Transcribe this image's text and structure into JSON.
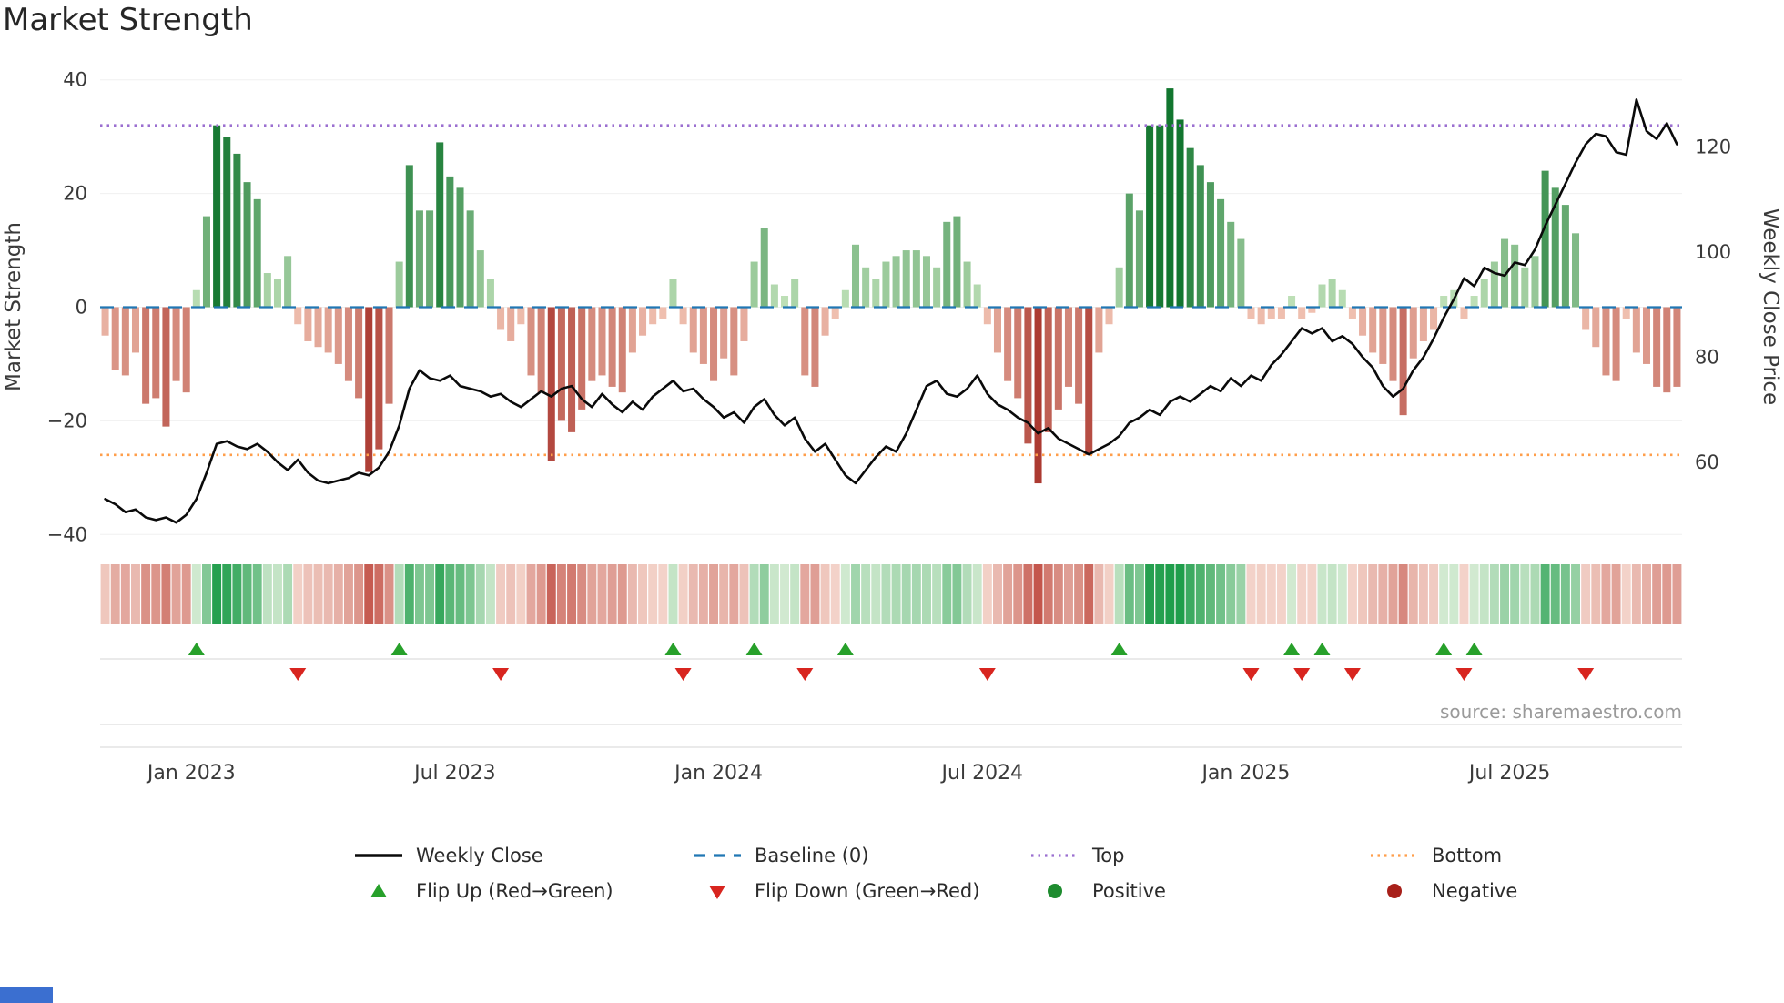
{
  "title": "Market Strength",
  "source": "source: sharemaestro.com",
  "axes": {
    "left_label": "Market Strength",
    "right_label": "Weekly Close Price",
    "left_ticks": [
      {
        "value": -40,
        "label": "−40"
      },
      {
        "value": -20,
        "label": "−20"
      },
      {
        "value": 0,
        "label": "0"
      },
      {
        "value": 20,
        "label": "20"
      },
      {
        "value": 40,
        "label": "40"
      }
    ],
    "right_ticks": [
      {
        "value": 60,
        "label": "60"
      },
      {
        "value": 80,
        "label": "80"
      },
      {
        "value": 100,
        "label": "100"
      },
      {
        "value": 120,
        "label": "120"
      }
    ],
    "x_ticks": [
      {
        "week": 8,
        "label": "Jan 2023"
      },
      {
        "week": 34,
        "label": "Jul 2023"
      },
      {
        "week": 60,
        "label": "Jan 2024"
      },
      {
        "week": 86,
        "label": "Jul 2024"
      },
      {
        "week": 112,
        "label": "Jan 2025"
      },
      {
        "week": 138,
        "label": "Jul 2025"
      }
    ]
  },
  "chart_data": {
    "type": "bar+line",
    "title": "Market Strength",
    "x_unit": "weekly",
    "n_weeks": 156,
    "left_ylim": [
      -43,
      43
    ],
    "right_ylim": [
      43,
      136
    ],
    "baseline": 0,
    "top_line": 32,
    "bottom_line": -26,
    "legend_position": "bottom",
    "grid": "faint horizontal",
    "series": [
      {
        "name": "Market Strength",
        "type": "bar",
        "axis": "left",
        "values": [
          -5,
          -11,
          -12,
          -8,
          -17,
          -16,
          -21,
          -13,
          -15,
          3,
          16,
          32,
          30,
          27,
          22,
          19,
          6,
          5,
          9,
          -3,
          -6,
          -7,
          -8,
          -10,
          -13,
          -16,
          -29,
          -25,
          -17,
          8,
          25,
          17,
          17,
          29,
          23,
          21,
          17,
          10,
          5,
          -4,
          -6,
          -3,
          -12,
          -15,
          -27,
          -20,
          -22,
          -18,
          -13,
          -12,
          -14,
          -15,
          -8,
          -5,
          -3,
          -2,
          5,
          -3,
          -8,
          -10,
          -13,
          -9,
          -12,
          -6,
          8,
          14,
          4,
          2,
          5,
          -12,
          -14,
          -5,
          -2,
          3,
          11,
          7,
          5,
          8,
          9,
          10,
          10,
          9,
          7,
          15,
          16,
          8,
          4,
          -3,
          -8,
          -13,
          -16,
          -24,
          -31,
          -22,
          -18,
          -14,
          -17,
          -26,
          -8,
          -3,
          7,
          20,
          17,
          32,
          32,
          38.5,
          33,
          28,
          25,
          22,
          19,
          15,
          12,
          -2,
          -3,
          -2,
          -2,
          2,
          -2,
          -1,
          4,
          5,
          3,
          -2,
          -5,
          -8,
          -10,
          -13,
          -19,
          -9,
          -6,
          -4,
          2,
          3,
          -2,
          2,
          5,
          8,
          12,
          11,
          7,
          9,
          24,
          21,
          18,
          13,
          -4,
          -7,
          -12,
          -13,
          -2,
          -8,
          -10,
          -14,
          -15,
          -14
        ]
      },
      {
        "name": "Weekly Close",
        "type": "line",
        "axis": "right",
        "values": [
          53,
          52,
          50.5,
          51,
          49.5,
          49,
          49.5,
          48.5,
          50,
          53,
          58,
          63.5,
          64,
          63,
          62.5,
          63.5,
          62,
          60,
          58.5,
          60.5,
          58,
          56.5,
          56,
          56.5,
          57,
          58,
          57.5,
          59,
          62,
          67,
          74,
          77.5,
          76,
          75.5,
          76.5,
          74.5,
          74,
          73.5,
          72.5,
          73,
          71.5,
          70.5,
          72,
          73.5,
          72.5,
          74,
          74.5,
          72,
          70.5,
          73,
          71,
          69.5,
          71.5,
          70,
          72.5,
          74,
          75.5,
          73.5,
          74,
          72,
          70.5,
          68.5,
          69.5,
          67.5,
          70.5,
          72,
          69,
          67,
          68.5,
          64.5,
          62,
          63.5,
          60.5,
          57.5,
          56,
          58.5,
          61,
          63,
          62,
          65.5,
          70,
          74.5,
          75.5,
          73,
          72.5,
          74,
          76.5,
          73,
          71,
          70,
          68.5,
          67.5,
          65.5,
          66.5,
          64.5,
          63.5,
          62.5,
          61.5,
          62.5,
          63.5,
          65,
          67.5,
          68.5,
          70,
          69,
          71.5,
          72.5,
          71.5,
          73,
          74.5,
          73.5,
          76,
          74.5,
          76.5,
          75.5,
          78.5,
          80.5,
          83,
          85.5,
          84.5,
          85.5,
          83,
          84,
          82.5,
          80,
          78,
          74.5,
          72.5,
          74,
          77.5,
          80,
          83.5,
          87.5,
          91,
          95,
          93.5,
          97,
          96,
          95.5,
          98,
          97.5,
          100.5,
          105,
          109,
          113,
          117,
          120.5,
          122.5,
          122,
          119,
          118.5,
          129,
          123,
          121.5,
          124.5,
          120.5
        ]
      }
    ],
    "flip_up_weeks": [
      9,
      29,
      56,
      64,
      73,
      100,
      117,
      120,
      132,
      135
    ],
    "flip_down_weeks": [
      19,
      39,
      57,
      69,
      87,
      113,
      118,
      123,
      134,
      146
    ],
    "heatmap": {
      "description": "weekly heat strip below main plot; cell color encodes Market Strength bar value (red negative to green positive)"
    }
  },
  "legend": {
    "weekly_close": "Weekly Close",
    "baseline": "Baseline (0)",
    "top": "Top",
    "bottom": "Bottom",
    "flip_up": "Flip Up (Red→Green)",
    "flip_down": "Flip Down (Green→Red)",
    "positive": "Positive",
    "negative": "Negative"
  },
  "colors": {
    "price_line": "#0a0a0a",
    "baseline": "#2077b4",
    "top": "#9b6fd0",
    "bottom": "#ff9e4a",
    "pos_light": "#c8e6bf",
    "pos_dark": "#12762f",
    "neg_light": "#f4c9b8",
    "neg_dark": "#ac3a31",
    "heat_pos_light": "#e1f0dc",
    "heat_pos_dark": "#1f9e4b",
    "heat_neg_light": "#f7ddd4",
    "heat_neg_dark": "#c4564c",
    "flip_up": "#27a02a",
    "flip_down": "#d8251f",
    "positive_dot": "#1e8c2f",
    "negative_dot": "#a8201a"
  }
}
